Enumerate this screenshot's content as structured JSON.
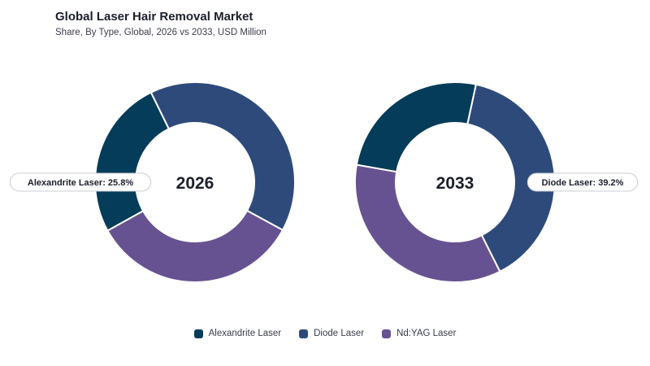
{
  "header": {
    "title": "Global Laser Hair Removal Market",
    "subtitle": "Share, By Type, Global, 2026 vs 2033, USD Million"
  },
  "colors": {
    "alexandrite": "#053c59",
    "diode": "#2d4a7a",
    "ndyag": "#675291"
  },
  "chart_data": [
    {
      "type": "donut",
      "center_label": "2026",
      "series": [
        {
          "name": "Alexandrite Laser",
          "value": 25.8,
          "color": "#053c59"
        },
        {
          "name": "Diode Laser",
          "value": 40.2,
          "color": "#2d4a7a"
        },
        {
          "name": "Nd:YAG Laser",
          "value": 34.0,
          "color": "#675291"
        }
      ],
      "callout": {
        "text": "Alexandrite Laser: 25.8%",
        "side": "left"
      }
    },
    {
      "type": "donut",
      "center_label": "2033",
      "series": [
        {
          "name": "Alexandrite Laser",
          "value": 25.6,
          "color": "#053c59"
        },
        {
          "name": "Diode Laser",
          "value": 39.2,
          "color": "#2d4a7a"
        },
        {
          "name": "Nd:YAG Laser",
          "value": 35.2,
          "color": "#675291"
        }
      ],
      "callout": {
        "text": "Diode Laser: 39.2%",
        "side": "right"
      }
    }
  ],
  "legend": [
    {
      "label": "Alexandrite Laser",
      "color": "#053c59"
    },
    {
      "label": "Diode Laser",
      "color": "#2d4a7a"
    },
    {
      "label": "Nd:YAG Laser",
      "color": "#675291"
    }
  ]
}
